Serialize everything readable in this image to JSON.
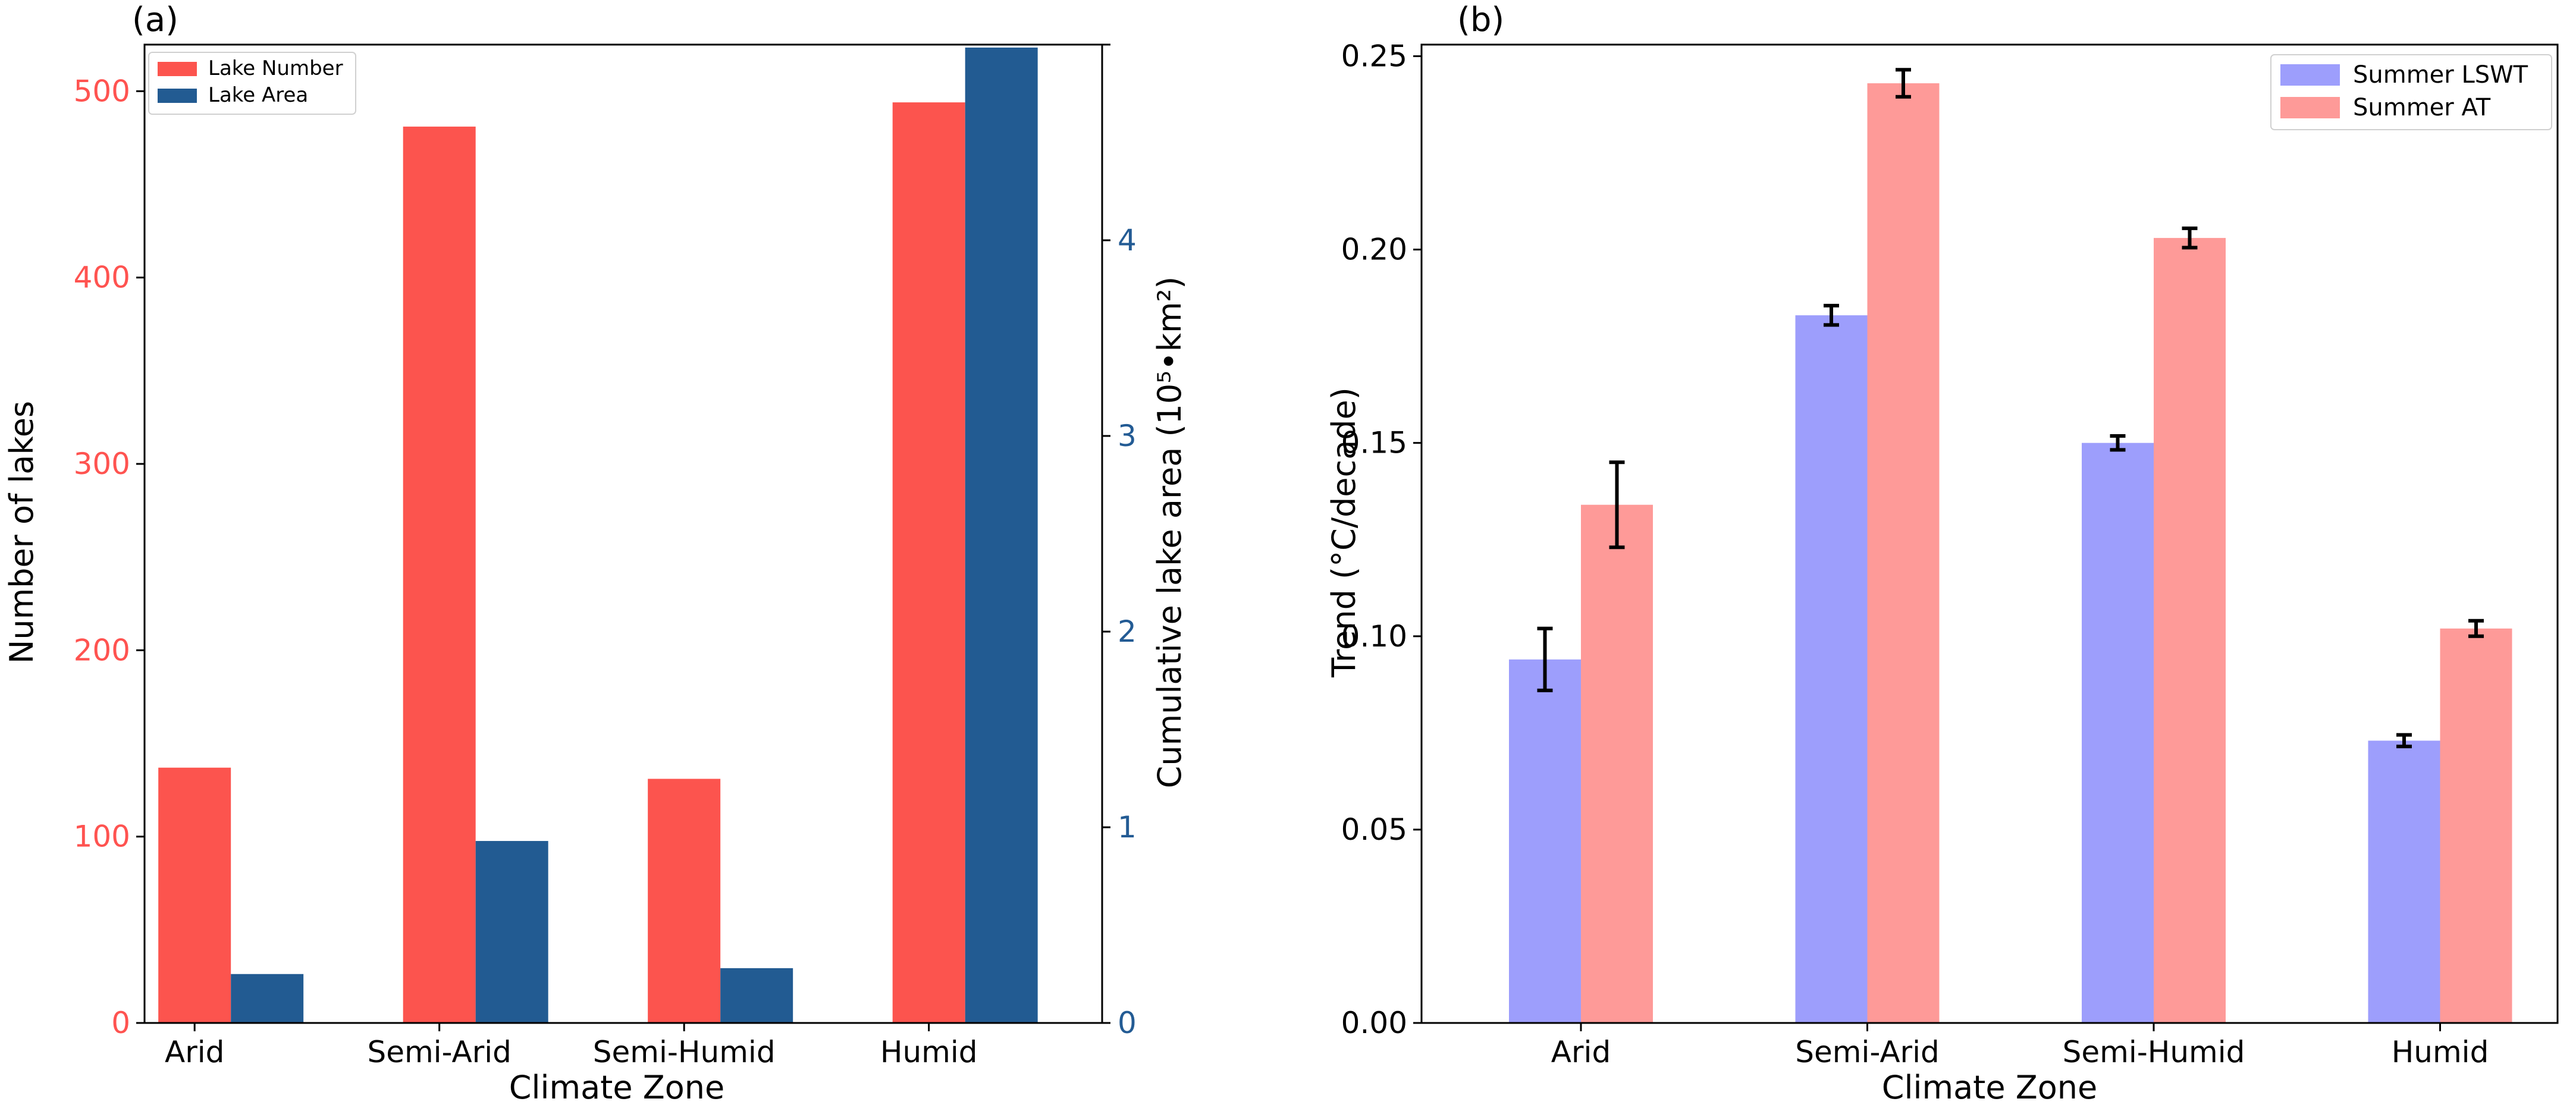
{
  "chart_data": [
    {
      "type": "bar",
      "panel_label": "(a)",
      "categories": [
        "Arid",
        "Semi-Arid",
        "Semi-Humid",
        "Humid"
      ],
      "xlabel": "Climate Zone",
      "ylabel": "Number of lakes",
      "ylabel_right": "Cumulative lake area (10⁵•km²)",
      "ylim": [
        0,
        525
      ],
      "ylim_right": [
        0,
        5
      ],
      "yticks": [
        0,
        100,
        200,
        300,
        400,
        500
      ],
      "yticks_right": [
        0,
        1,
        2,
        3,
        4
      ],
      "left_axis_color": "#ff5350",
      "right_axis_color": "#235b94",
      "legend_position": "top-left",
      "series": [
        {
          "name": "Lake Number",
          "axis": "left",
          "color": "#fc544e",
          "values": [
            137,
            481,
            131,
            494
          ]
        },
        {
          "name": "Lake Area",
          "axis": "right",
          "color": "#225b92",
          "values": [
            0.25,
            0.93,
            0.28,
            5.18
          ]
        }
      ]
    },
    {
      "type": "bar",
      "panel_label": "(b)",
      "categories": [
        "Arid",
        "Semi-Arid",
        "Semi-Humid",
        "Humid"
      ],
      "xlabel": "Climate Zone",
      "ylabel": "Trend (°C/decade)",
      "ylim": [
        0,
        0.253
      ],
      "yticks": [
        "0.00",
        "0.05",
        "0.10",
        "0.15",
        "0.20",
        "0.25"
      ],
      "legend_position": "top-right",
      "error_bars": true,
      "series": [
        {
          "name": "Summer LSWT",
          "color": "#9d9efc",
          "values": [
            0.094,
            0.183,
            0.15,
            0.073
          ],
          "errors": [
            0.008,
            0.0025,
            0.0018,
            0.0015
          ]
        },
        {
          "name": "Summer AT",
          "color": "#fe9a98",
          "values": [
            0.134,
            0.243,
            0.203,
            0.102
          ],
          "errors": [
            0.011,
            0.0035,
            0.0025,
            0.002
          ]
        }
      ]
    }
  ]
}
